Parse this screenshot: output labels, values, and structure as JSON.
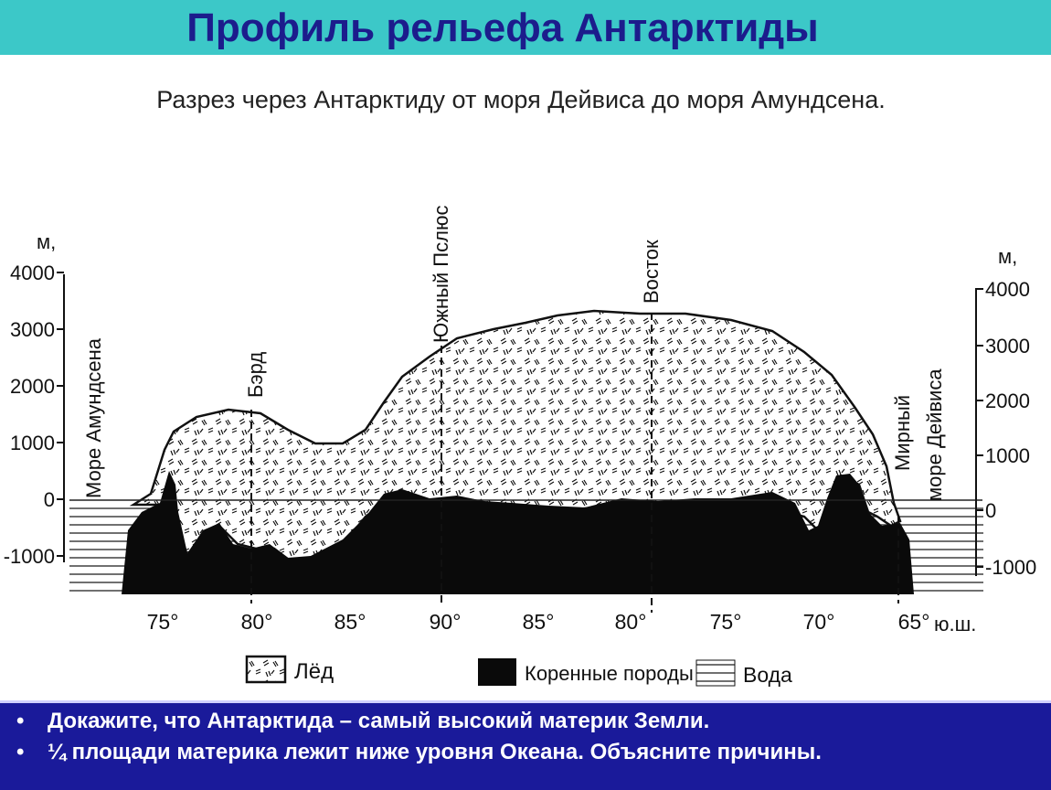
{
  "title": "Профиль рельефа Антарктиды",
  "diagram": {
    "caption": "Разрез через Антарктиду от моря Дейвиса до моря Амундсена.",
    "left_unit": "м,",
    "right_unit": "м,",
    "y_ticks": [
      "4000",
      "3000",
      "2000",
      "1000",
      "0",
      "-1000"
    ],
    "x_ticks": [
      "75°",
      "80°",
      "85°",
      "90°",
      "85°",
      "80°",
      "75°",
      "70°",
      "65°"
    ],
    "x_suffix": "ю.ш.",
    "labels": {
      "amundsen_sea": "Море Амундсена",
      "byrd": "Бэрд",
      "south_pole": "Южный Пслюс",
      "vostok": "Восток",
      "mirny": "Мирный",
      "davis_sea": "море Дейвиса"
    },
    "legend": {
      "ice": "Лёд",
      "bedrock": "Коренные породы",
      "water": "Вода"
    }
  },
  "questions": [
    "Докажите, что Антарктида – самый высокий материк Земли.",
    "¼ площади материка лежит ниже уровня Океана. Объясните причины."
  ]
}
